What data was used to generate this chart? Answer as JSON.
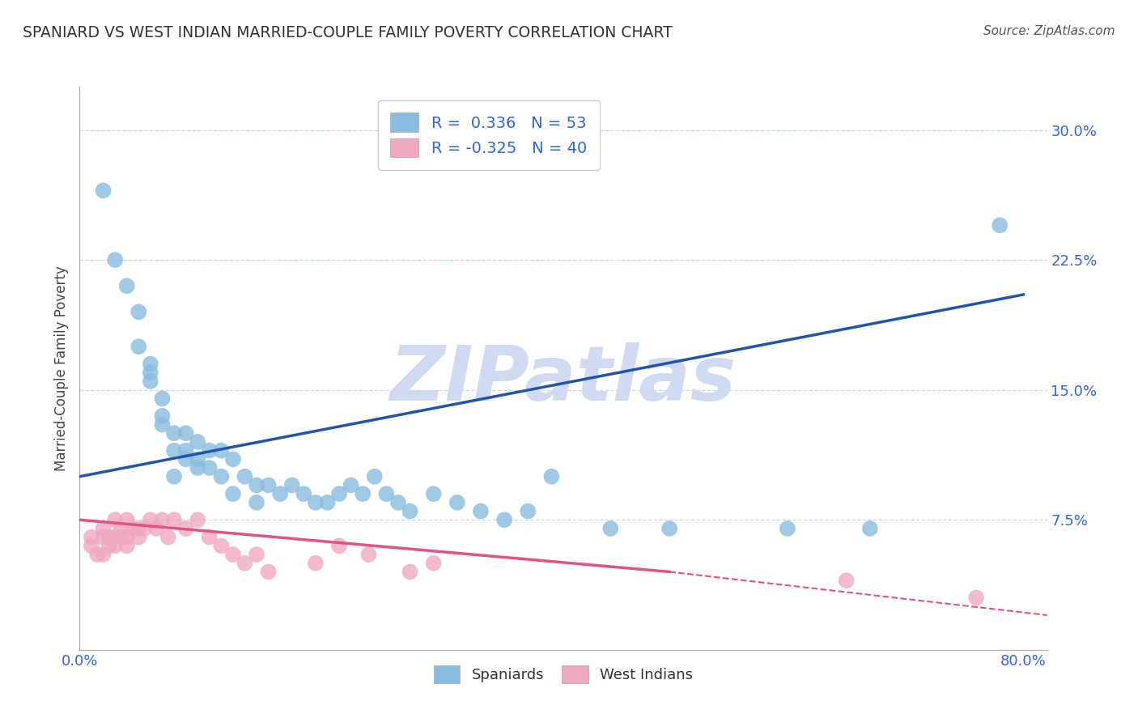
{
  "title": "SPANIARD VS WEST INDIAN MARRIED-COUPLE FAMILY POVERTY CORRELATION CHART",
  "source": "Source: ZipAtlas.com",
  "ylabel": "Married-Couple Family Poverty",
  "xlim": [
    0.0,
    0.82
  ],
  "ylim": [
    0.0,
    0.325
  ],
  "ytick_positions": [
    0.075,
    0.15,
    0.225,
    0.3
  ],
  "ytick_labels": [
    "7.5%",
    "15.0%",
    "22.5%",
    "30.0%"
  ],
  "grid_color": "#c8d8ec",
  "background_color": "#ffffff",
  "watermark": "ZIPatlas",
  "watermark_color": "#d0daf0",
  "blue_color": "#88bce0",
  "pink_color": "#f0a8c0",
  "blue_line_color": "#2255aa",
  "pink_line_color": "#dd5580",
  "R_blue": 0.336,
  "N_blue": 53,
  "R_pink": -0.325,
  "N_pink": 40,
  "spaniard_x": [
    0.02,
    0.03,
    0.04,
    0.05,
    0.05,
    0.06,
    0.06,
    0.06,
    0.07,
    0.07,
    0.07,
    0.08,
    0.08,
    0.08,
    0.09,
    0.09,
    0.09,
    0.1,
    0.1,
    0.1,
    0.11,
    0.11,
    0.12,
    0.12,
    0.13,
    0.13,
    0.14,
    0.15,
    0.15,
    0.16,
    0.17,
    0.18,
    0.19,
    0.2,
    0.21,
    0.22,
    0.23,
    0.24,
    0.25,
    0.26,
    0.27,
    0.28,
    0.3,
    0.32,
    0.34,
    0.36,
    0.38,
    0.4,
    0.45,
    0.5,
    0.6,
    0.67,
    0.78
  ],
  "spaniard_y": [
    0.265,
    0.225,
    0.21,
    0.195,
    0.175,
    0.165,
    0.16,
    0.155,
    0.145,
    0.135,
    0.13,
    0.125,
    0.115,
    0.1,
    0.125,
    0.115,
    0.11,
    0.12,
    0.11,
    0.105,
    0.115,
    0.105,
    0.115,
    0.1,
    0.11,
    0.09,
    0.1,
    0.095,
    0.085,
    0.095,
    0.09,
    0.095,
    0.09,
    0.085,
    0.085,
    0.09,
    0.095,
    0.09,
    0.1,
    0.09,
    0.085,
    0.08,
    0.09,
    0.085,
    0.08,
    0.075,
    0.08,
    0.1,
    0.07,
    0.07,
    0.07,
    0.07,
    0.245
  ],
  "westindian_x": [
    0.01,
    0.01,
    0.015,
    0.02,
    0.02,
    0.02,
    0.025,
    0.025,
    0.03,
    0.03,
    0.03,
    0.035,
    0.035,
    0.04,
    0.04,
    0.04,
    0.045,
    0.05,
    0.05,
    0.055,
    0.06,
    0.065,
    0.07,
    0.075,
    0.08,
    0.09,
    0.1,
    0.11,
    0.12,
    0.13,
    0.14,
    0.15,
    0.16,
    0.2,
    0.22,
    0.245,
    0.28,
    0.3,
    0.65,
    0.76
  ],
  "westindian_y": [
    0.065,
    0.06,
    0.055,
    0.065,
    0.055,
    0.07,
    0.06,
    0.065,
    0.065,
    0.06,
    0.075,
    0.065,
    0.07,
    0.065,
    0.06,
    0.075,
    0.07,
    0.07,
    0.065,
    0.07,
    0.075,
    0.07,
    0.075,
    0.065,
    0.075,
    0.07,
    0.075,
    0.065,
    0.06,
    0.055,
    0.05,
    0.055,
    0.045,
    0.05,
    0.06,
    0.055,
    0.045,
    0.05,
    0.04,
    0.03
  ]
}
